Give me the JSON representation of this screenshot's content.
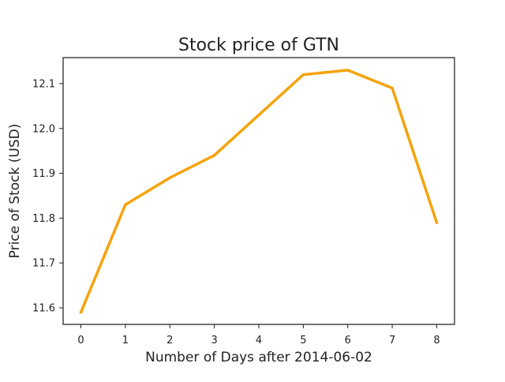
{
  "chart_data": {
    "type": "line",
    "title": "Stock price of GTN",
    "xlabel": "Number of Days after 2014-06-02",
    "ylabel": "Price of Stock (USD)",
    "x": [
      0,
      1,
      2,
      3,
      4,
      5,
      6,
      7,
      8
    ],
    "series": [
      {
        "values": [
          11.59,
          11.83,
          11.89,
          11.94,
          12.03,
          12.12,
          12.13,
          12.09,
          11.79
        ],
        "color": "#f5a30e"
      }
    ],
    "xticks": [
      "0",
      "1",
      "2",
      "3",
      "4",
      "5",
      "6",
      "7",
      "8"
    ],
    "yticks": [
      "11.6",
      "11.7",
      "11.8",
      "11.9",
      "12.0",
      "12.1"
    ],
    "xlim": [
      -0.4,
      8.4
    ],
    "ylim": [
      11.563,
      12.158
    ],
    "grid": false,
    "legend": "none"
  }
}
